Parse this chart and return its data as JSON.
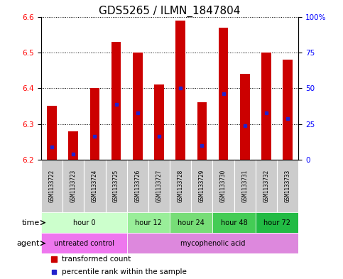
{
  "title": "GDS5265 / ILMN_1847804",
  "samples": [
    "GSM1133722",
    "GSM1133723",
    "GSM1133724",
    "GSM1133725",
    "GSM1133726",
    "GSM1133727",
    "GSM1133728",
    "GSM1133729",
    "GSM1133730",
    "GSM1133731",
    "GSM1133732",
    "GSM1133733"
  ],
  "bar_bottom": 6.2,
  "bar_tops": [
    6.35,
    6.28,
    6.4,
    6.53,
    6.5,
    6.41,
    6.59,
    6.36,
    6.57,
    6.44,
    6.5,
    6.48
  ],
  "percentile_values": [
    6.235,
    6.215,
    6.265,
    6.355,
    6.33,
    6.265,
    6.4,
    6.24,
    6.385,
    6.295,
    6.33,
    6.315
  ],
  "ylim_left": [
    6.2,
    6.6
  ],
  "ylim_right": [
    0,
    100
  ],
  "yticks_left": [
    6.2,
    6.3,
    6.4,
    6.5,
    6.6
  ],
  "yticks_right": [
    0,
    25,
    50,
    75,
    100
  ],
  "ytick_labels_right": [
    "0",
    "25",
    "50",
    "75",
    "100%"
  ],
  "bar_color": "#cc0000",
  "percentile_color": "#2222cc",
  "grid_color": "#000000",
  "sample_box_color": "#cccccc",
  "time_groups": [
    {
      "label": "hour 0",
      "start": 0,
      "end": 4,
      "color": "#ccffcc"
    },
    {
      "label": "hour 12",
      "start": 4,
      "end": 6,
      "color": "#99ee99"
    },
    {
      "label": "hour 24",
      "start": 6,
      "end": 8,
      "color": "#77dd77"
    },
    {
      "label": "hour 48",
      "start": 8,
      "end": 10,
      "color": "#44cc55"
    },
    {
      "label": "hour 72",
      "start": 10,
      "end": 12,
      "color": "#22bb44"
    }
  ],
  "agent_groups": [
    {
      "label": "untreated control",
      "start": 0,
      "end": 4,
      "color": "#ee77ee"
    },
    {
      "label": "mycophenolic acid",
      "start": 4,
      "end": 12,
      "color": "#dd88dd"
    }
  ],
  "legend_red": "transformed count",
  "legend_blue": "percentile rank within the sample",
  "time_label": "time",
  "agent_label": "agent",
  "bar_width": 0.45,
  "tick_fontsize": 7.5,
  "title_fontsize": 11
}
